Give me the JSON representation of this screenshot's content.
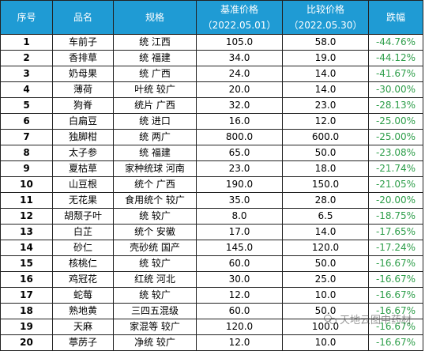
{
  "headers": {
    "idx": "序号",
    "name": "品名",
    "spec": "规格",
    "base_price": "基准价格",
    "base_date": "（2022.05.01）",
    "comp_price": "比较价格",
    "comp_date": "（2022.05.30）",
    "change": "跌幅"
  },
  "rows": [
    {
      "idx": "1",
      "name": "车前子",
      "spec": "统 江西",
      "base": "105.0",
      "comp": "58.0",
      "change": "-44.76%"
    },
    {
      "idx": "2",
      "name": "香排草",
      "spec": "统 福建",
      "base": "34.0",
      "comp": "19.0",
      "change": "-44.12%"
    },
    {
      "idx": "3",
      "name": "奶母果",
      "spec": "统 广西",
      "base": "24.0",
      "comp": "14.0",
      "change": "-41.67%"
    },
    {
      "idx": "4",
      "name": "薄荷",
      "spec": "叶统 较广",
      "base": "20.0",
      "comp": "14.0",
      "change": "-30.00%"
    },
    {
      "idx": "5",
      "name": "狗脊",
      "spec": "统片 广西",
      "base": "32.0",
      "comp": "23.0",
      "change": "-28.13%"
    },
    {
      "idx": "6",
      "name": "白扁豆",
      "spec": "统 进口",
      "base": "16.0",
      "comp": "12.0",
      "change": "-25.00%"
    },
    {
      "idx": "7",
      "name": "独脚柑",
      "spec": "统 两广",
      "base": "800.0",
      "comp": "600.0",
      "change": "-25.00%"
    },
    {
      "idx": "8",
      "name": "太子参",
      "spec": "统 福建",
      "base": "65.0",
      "comp": "50.0",
      "change": "-23.08%"
    },
    {
      "idx": "9",
      "name": "夏枯草",
      "spec": "家种统球 河南",
      "base": "23.0",
      "comp": "18.0",
      "change": "-21.74%"
    },
    {
      "idx": "10",
      "name": "山豆根",
      "spec": "统个 广西",
      "base": "190.0",
      "comp": "150.0",
      "change": "-21.05%"
    },
    {
      "idx": "11",
      "name": "无花果",
      "spec": "食用统个 较广",
      "base": "35.0",
      "comp": "28.0",
      "change": "-20.00%"
    },
    {
      "idx": "12",
      "name": "胡颓子叶",
      "spec": "统 较广",
      "base": "8.0",
      "comp": "6.5",
      "change": "-18.75%"
    },
    {
      "idx": "13",
      "name": "白芷",
      "spec": "统个 安徽",
      "base": "17.0",
      "comp": "14.0",
      "change": "-17.65%"
    },
    {
      "idx": "14",
      "name": "砂仁",
      "spec": "壳砂统 国产",
      "base": "145.0",
      "comp": "120.0",
      "change": "-17.24%"
    },
    {
      "idx": "15",
      "name": "核桃仁",
      "spec": "统 较广",
      "base": "60.0",
      "comp": "50.0",
      "change": "-16.67%"
    },
    {
      "idx": "16",
      "name": "鸡冠花",
      "spec": "红统 河北",
      "base": "30.0",
      "comp": "25.0",
      "change": "-16.67%"
    },
    {
      "idx": "17",
      "name": "蛇莓",
      "spec": "统 较广",
      "base": "12.0",
      "comp": "10.0",
      "change": "-16.67%"
    },
    {
      "idx": "18",
      "name": "熟地黄",
      "spec": "三四五混级",
      "base": "60.0",
      "comp": "50.0",
      "change": "-16.67%"
    },
    {
      "idx": "19",
      "name": "天麻",
      "spec": "家混等 较广",
      "base": "120.0",
      "comp": "100.0",
      "change": "-16.67%"
    },
    {
      "idx": "20",
      "name": "葶苈子",
      "spec": "净统 较广",
      "base": "12.0",
      "comp": "10.0",
      "change": "-16.67%"
    }
  ],
  "watermark": "天地云图中药材"
}
